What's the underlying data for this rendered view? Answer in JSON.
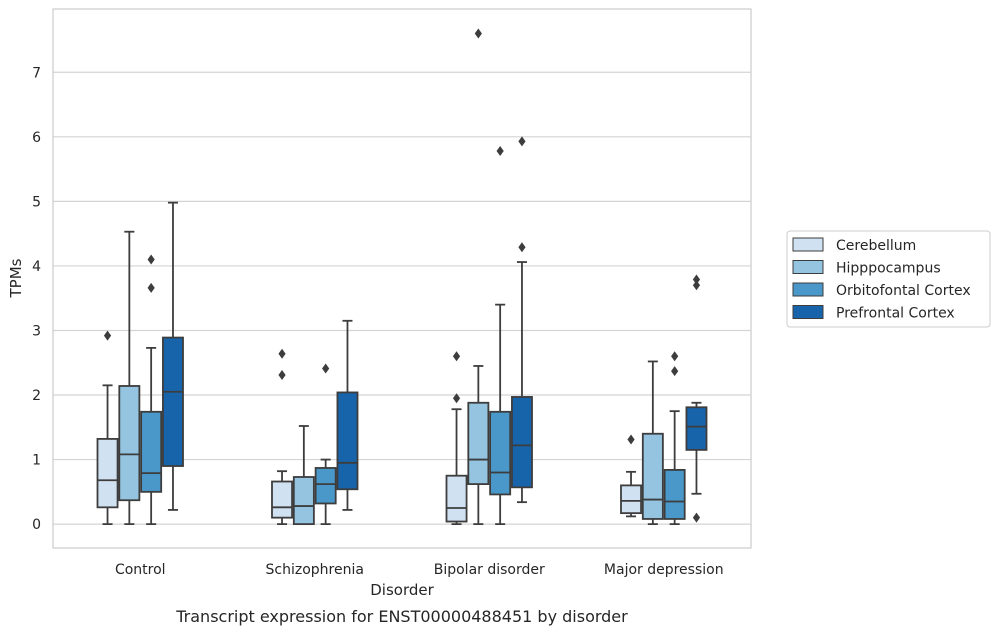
{
  "chart_data": {
    "type": "box",
    "title": "",
    "caption": "Transcript expression for ENST00000488451 by disorder",
    "xlabel": "Disorder",
    "ylabel": "TPMs",
    "ylim": [
      -0.37,
      7.98
    ],
    "yticks": [
      0,
      1,
      2,
      3,
      4,
      5,
      6,
      7
    ],
    "grid": "horizontal",
    "legend_position": "right",
    "categories": [
      "Control",
      "Schizophrenia",
      "Bipolar disorder",
      "Major depression"
    ],
    "series": [
      {
        "name": "Cerebellum",
        "color": "#d0e1f2",
        "boxes": [
          {
            "min": 0.0,
            "q1": 0.26,
            "median": 0.68,
            "q3": 1.32,
            "max": 2.15,
            "outliers": [
              2.92
            ]
          },
          {
            "min": 0.0,
            "q1": 0.1,
            "median": 0.26,
            "q3": 0.66,
            "max": 0.82,
            "outliers": [
              2.31,
              2.64
            ]
          },
          {
            "min": 0.0,
            "q1": 0.04,
            "median": 0.25,
            "q3": 0.75,
            "max": 1.78,
            "outliers": [
              1.95,
              2.6
            ]
          },
          {
            "min": 0.12,
            "q1": 0.17,
            "median": 0.36,
            "q3": 0.6,
            "max": 0.81,
            "outliers": [
              1.31
            ]
          }
        ]
      },
      {
        "name": "Hipppocampus",
        "color": "#94c4df",
        "boxes": [
          {
            "min": 0.0,
            "q1": 0.37,
            "median": 1.08,
            "q3": 2.14,
            "max": 4.53,
            "outliers": []
          },
          {
            "min": 0.0,
            "q1": 0.0,
            "median": 0.28,
            "q3": 0.73,
            "max": 1.52,
            "outliers": []
          },
          {
            "min": 0.0,
            "q1": 0.62,
            "median": 1.0,
            "q3": 1.88,
            "max": 2.45,
            "outliers": [
              7.6
            ]
          },
          {
            "min": 0.0,
            "q1": 0.08,
            "median": 0.38,
            "q3": 1.4,
            "max": 2.52,
            "outliers": []
          }
        ]
      },
      {
        "name": "Orbitofontal Cortex",
        "color": "#4a98c9",
        "boxes": [
          {
            "min": 0.0,
            "q1": 0.5,
            "median": 0.79,
            "q3": 1.74,
            "max": 2.73,
            "outliers": [
              3.66,
              4.1
            ]
          },
          {
            "min": 0.0,
            "q1": 0.32,
            "median": 0.62,
            "q3": 0.87,
            "max": 1.0,
            "outliers": [
              2.41
            ]
          },
          {
            "min": 0.0,
            "q1": 0.46,
            "median": 0.8,
            "q3": 1.74,
            "max": 3.4,
            "outliers": [
              5.78
            ]
          },
          {
            "min": 0.0,
            "q1": 0.08,
            "median": 0.35,
            "q3": 0.84,
            "max": 1.75,
            "outliers": [
              2.37,
              2.6
            ]
          }
        ]
      },
      {
        "name": "Prefrontal Cortex",
        "color": "#1764ab",
        "boxes": [
          {
            "min": 0.22,
            "q1": 0.9,
            "median": 2.05,
            "q3": 2.89,
            "max": 4.98,
            "outliers": []
          },
          {
            "min": 0.22,
            "q1": 0.54,
            "median": 0.95,
            "q3": 2.04,
            "max": 3.15,
            "outliers": []
          },
          {
            "min": 0.34,
            "q1": 0.57,
            "median": 1.22,
            "q3": 1.97,
            "max": 4.06,
            "outliers": [
              4.29,
              5.93
            ]
          },
          {
            "min": 0.47,
            "q1": 1.15,
            "median": 1.51,
            "q3": 1.81,
            "max": 1.88,
            "outliers": [
              0.1,
              3.7,
              3.79
            ]
          }
        ]
      }
    ]
  }
}
